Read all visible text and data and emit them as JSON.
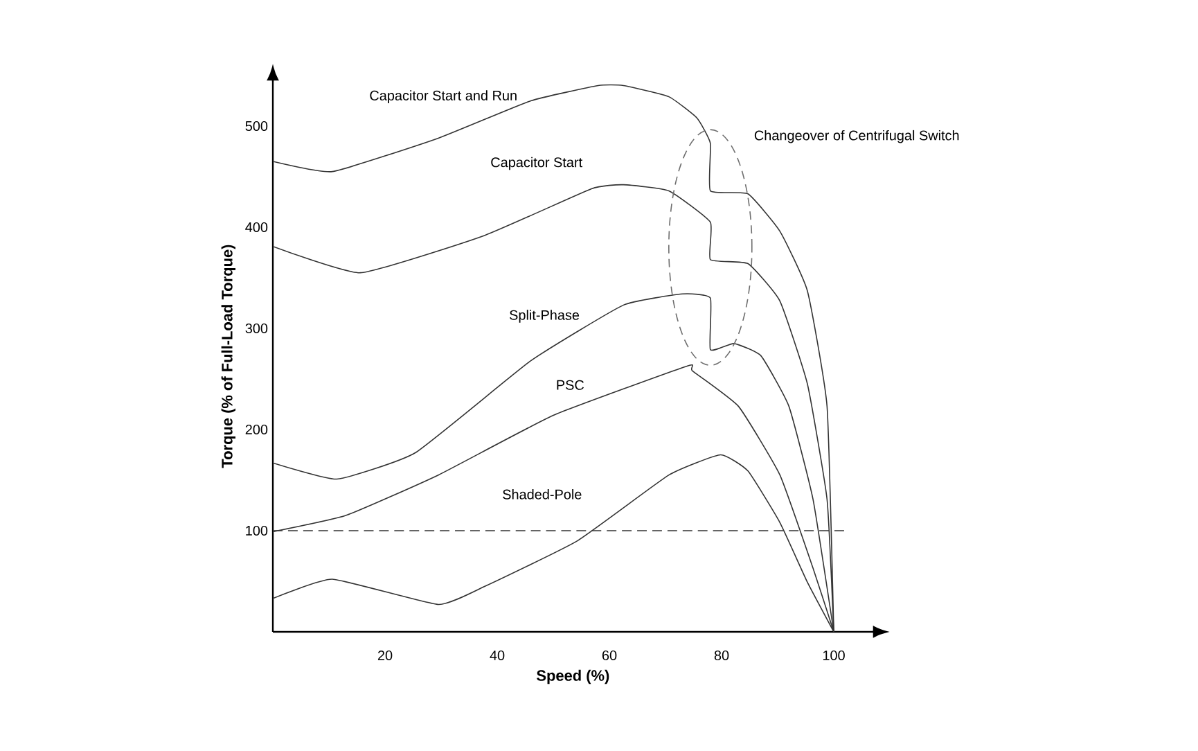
{
  "chart_data": {
    "type": "line",
    "xlabel": "Speed (%)",
    "ylabel": "Torque (% of Full-Load Torque)",
    "xlim": [
      0,
      107
    ],
    "ylim": [
      0,
      545
    ],
    "xticks": [
      20,
      40,
      60,
      80,
      100
    ],
    "yticks": [
      100,
      200,
      300,
      400,
      500
    ],
    "grid": false,
    "legend": false,
    "marker": "none",
    "line_style": "solid",
    "series": [
      {
        "name": "Capacitor Start and Run",
        "color": "#333333",
        "x": [
          0,
          10.6,
          29.5,
          46,
          58,
          62.5,
          70.6,
          75.6,
          78,
          78,
          84.7,
          90.4,
          95.3,
          98.8,
          100
        ],
        "values": [
          465,
          455,
          488,
          525,
          540,
          540,
          529,
          508,
          483,
          436,
          433,
          396,
          337,
          223,
          0
        ]
      },
      {
        "name": "Capacitor Start",
        "color": "#333333",
        "x": [
          0,
          15.6,
          37.8,
          56.8,
          62.5,
          70.6,
          78,
          78,
          84.7,
          90.4,
          95.3,
          98.8,
          100
        ],
        "values": [
          381,
          355,
          392,
          438,
          442,
          436,
          405,
          368,
          364,
          327,
          245,
          131,
          0
        ]
      },
      {
        "name": "Split-Phase",
        "color": "#333333",
        "x": [
          0,
          11.4,
          25.4,
          46,
          62.5,
          73,
          78,
          78,
          82.2,
          87,
          92,
          96.3,
          100
        ],
        "values": [
          167,
          151,
          177,
          268,
          323,
          334,
          330,
          279,
          285,
          273,
          223,
          131,
          0
        ]
      },
      {
        "name": "PSC",
        "color": "#333333",
        "x": [
          0,
          13,
          29.5,
          50,
          74,
          74.8,
          83,
          90.4,
          96.3,
          100
        ],
        "values": [
          99,
          115,
          155,
          214,
          263,
          258,
          223,
          155,
          63,
          0
        ]
      },
      {
        "name": "Shaded-Pole",
        "color": "#333333",
        "x": [
          0,
          10.6,
          29.5,
          37.8,
          54.3,
          70.6,
          79.8,
          84.7,
          90.4,
          95.3,
          100
        ],
        "values": [
          33,
          52,
          27,
          45,
          90,
          155,
          175,
          159,
          108,
          49,
          0
        ]
      }
    ],
    "ref_lines": [
      {
        "axis": "y",
        "value": 100,
        "line_style": "dashed",
        "color": "#333333"
      }
    ],
    "annotations": [
      "Changeover of Centrifugal Switch"
    ]
  }
}
